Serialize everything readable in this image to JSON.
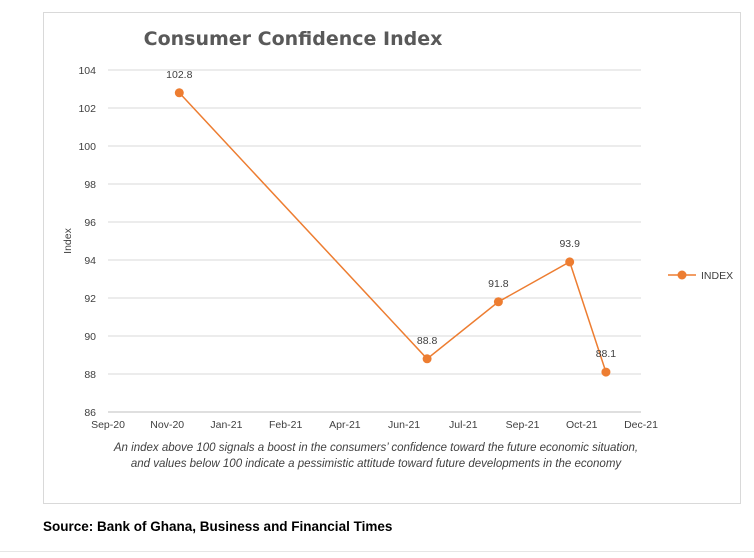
{
  "chart_data": {
    "type": "line",
    "title": "Consumer Confidence Index",
    "xlabel": "",
    "ylabel": "Index",
    "x_tick_labels": [
      "Sep-20",
      "Nov-20",
      "Jan-21",
      "Feb-21",
      "Apr-21",
      "Jun-21",
      "Jul-21",
      "Sep-21",
      "Oct-21",
      "Dec-21"
    ],
    "y_ticks": [
      86,
      88,
      90,
      92,
      94,
      96,
      98,
      100,
      102,
      104
    ],
    "ylim": [
      86,
      104
    ],
    "xlim": [
      "2020-09-01",
      "2021-12-01"
    ],
    "grid": true,
    "legend_position": "right",
    "series": [
      {
        "name": "INDEX",
        "color": "#ED7D31",
        "points": [
          {
            "x": "2020-11-01",
            "y": 102.8
          },
          {
            "x": "2021-06-01",
            "y": 88.8
          },
          {
            "x": "2021-08-01",
            "y": 91.8
          },
          {
            "x": "2021-10-01",
            "y": 93.9
          },
          {
            "x": "2021-11-01",
            "y": 88.1
          }
        ]
      }
    ]
  },
  "caption": "An index above 100 signals a boost in the consumers’ confidence toward the future economic situation, and values below 100 indicate a pessimistic attitude toward future developments in the economy",
  "source": "Source:  Bank of Ghana, Business and Financial Times"
}
